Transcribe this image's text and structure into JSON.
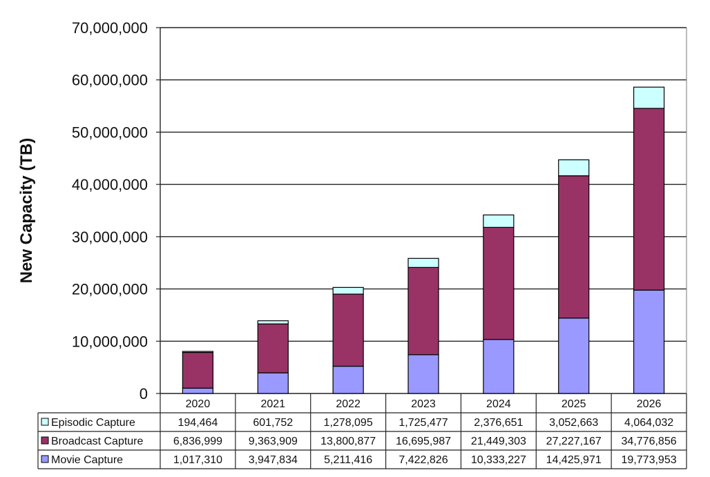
{
  "chart_data": {
    "type": "bar",
    "stacked": true,
    "ylabel": "New Capacity (TB)",
    "ylim": [
      0,
      70000000
    ],
    "yticks": [
      0,
      10000000,
      20000000,
      30000000,
      40000000,
      50000000,
      60000000,
      70000000
    ],
    "ytick_labels": [
      "0",
      "10,000,000",
      "20,000,000",
      "30,000,000",
      "40,000,000",
      "50,000,000",
      "60,000,000",
      "70,000,000"
    ],
    "grid": true,
    "legend": "data-table-left",
    "categories": [
      "2020",
      "2021",
      "2022",
      "2023",
      "2024",
      "2025",
      "2026"
    ],
    "series": [
      {
        "name": "Movie Capture",
        "color": "#9999ff",
        "values": [
          1017310,
          3947834,
          5211416,
          7422826,
          10333227,
          14425971,
          19773953
        ],
        "labels": [
          "1,017,310",
          "3,947,834",
          "5,211,416",
          "7,422,826",
          "10,333,227",
          "14,425,971",
          "19,773,953"
        ]
      },
      {
        "name": "Broadcast Capture",
        "color": "#993366",
        "values": [
          6836999,
          9363909,
          13800877,
          16695987,
          21449303,
          27227167,
          34776856
        ],
        "labels": [
          "6,836,999",
          "9,363,909",
          "13,800,877",
          "16,695,987",
          "21,449,303",
          "27,227,167",
          "34,776,856"
        ]
      },
      {
        "name": "Episodic Capture",
        "color": "#ccffff",
        "values": [
          194464,
          601752,
          1278095,
          1725477,
          2376651,
          3052663,
          4064032
        ],
        "labels": [
          "194,464",
          "601,752",
          "1,278,095",
          "1,725,477",
          "2,376,651",
          "3,052,663",
          "4,064,032"
        ]
      }
    ],
    "table_row_order": [
      "Episodic Capture",
      "Broadcast Capture",
      "Movie Capture"
    ]
  }
}
